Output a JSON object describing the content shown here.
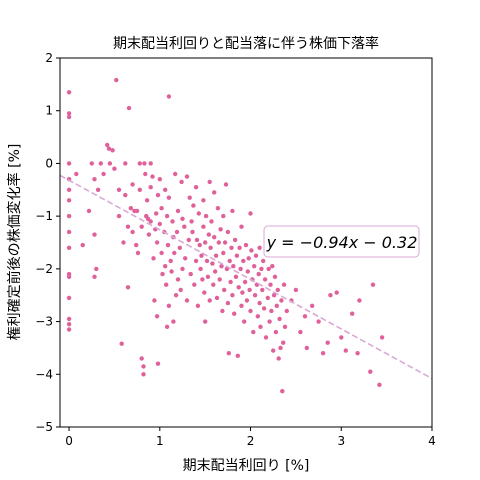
{
  "chart_data": {
    "type": "scatter",
    "title": "期末配当利回りと配当落に伴う株価下落率",
    "xlabel": "期末配当利回り [%]",
    "ylabel": "権利確定前後の株価変化率 [%]",
    "xlim": [
      -0.1,
      4
    ],
    "ylim": [
      -5,
      2
    ],
    "xticks": [
      0,
      1,
      2,
      3,
      4
    ],
    "yticks": [
      -5,
      -4,
      -3,
      -2,
      -1,
      0,
      1,
      2
    ],
    "grid": false,
    "annotation": "y = −0.94x − 0.32",
    "regression": {
      "slope": -0.94,
      "intercept": -0.32
    },
    "point_color": "#e0609a",
    "line_color": "#d9a9d6",
    "points": [
      [
        0,
        1.35
      ],
      [
        0,
        0.95
      ],
      [
        0,
        0.88
      ],
      [
        0,
        0
      ],
      [
        0,
        -0.3
      ],
      [
        0,
        -0.5
      ],
      [
        0,
        -0.7
      ],
      [
        0,
        -1.0
      ],
      [
        0,
        -1.3
      ],
      [
        0,
        -1.6
      ],
      [
        0,
        -2.1
      ],
      [
        0,
        -2.15
      ],
      [
        0,
        -2.55
      ],
      [
        0,
        -2.95
      ],
      [
        0,
        -3.05
      ],
      [
        0,
        -3.15
      ],
      [
        0.08,
        -0.2
      ],
      [
        0.15,
        -1.55
      ],
      [
        0.22,
        -0.9
      ],
      [
        0.25,
        0
      ],
      [
        0.28,
        -0.3
      ],
      [
        0.28,
        -1.35
      ],
      [
        0.28,
        -2.15
      ],
      [
        0.3,
        -2.0
      ],
      [
        0.32,
        -0.5
      ],
      [
        0.35,
        0
      ],
      [
        0.38,
        -0.2
      ],
      [
        0.42,
        0.35
      ],
      [
        0.44,
        0.28
      ],
      [
        0.45,
        0
      ],
      [
        0.48,
        0.25
      ],
      [
        0.5,
        -0.1
      ],
      [
        0.52,
        1.58
      ],
      [
        0.55,
        -0.5
      ],
      [
        0.55,
        -1.0
      ],
      [
        0.58,
        -3.42
      ],
      [
        0.6,
        -1.5
      ],
      [
        0.62,
        0
      ],
      [
        0.62,
        -0.6
      ],
      [
        0.65,
        -1.2
      ],
      [
        0.65,
        -2.35
      ],
      [
        0.66,
        1.05
      ],
      [
        0.68,
        -0.85
      ],
      [
        0.7,
        -1.3
      ],
      [
        0.7,
        -0.4
      ],
      [
        0.72,
        -0.9
      ],
      [
        0.74,
        -1.55
      ],
      [
        0.75,
        -0.9
      ],
      [
        0.76,
        -1.7
      ],
      [
        0.78,
        0
      ],
      [
        0.78,
        -0.5
      ],
      [
        0.8,
        -1.2
      ],
      [
        0.8,
        -3.7
      ],
      [
        0.82,
        -3.85
      ],
      [
        0.82,
        -4.0
      ],
      [
        0.83,
        0
      ],
      [
        0.84,
        -0.2
      ],
      [
        0.85,
        -1.0
      ],
      [
        0.86,
        -0.7
      ],
      [
        0.87,
        -1.05
      ],
      [
        0.88,
        -1.35
      ],
      [
        0.9,
        0
      ],
      [
        0.9,
        -1.1
      ],
      [
        0.9,
        -0.45
      ],
      [
        0.92,
        -0.25
      ],
      [
        0.93,
        -1.8
      ],
      [
        0.94,
        -2.6
      ],
      [
        0.95,
        -1.25
      ],
      [
        0.96,
        -0.95
      ],
      [
        0.97,
        -1.5
      ],
      [
        0.97,
        -2.9
      ],
      [
        0.98,
        -0.6
      ],
      [
        0.98,
        -3.8
      ],
      [
        1.0,
        -0.3
      ],
      [
        1.0,
        -1.15
      ],
      [
        1.02,
        -0.85
      ],
      [
        1.02,
        -1.7
      ],
      [
        1.03,
        -2.1
      ],
      [
        1.05,
        -1.3
      ],
      [
        1.06,
        -0.5
      ],
      [
        1.06,
        -1.95
      ],
      [
        1.07,
        -2.3
      ],
      [
        1.08,
        -1.0
      ],
      [
        1.08,
        -3.1
      ],
      [
        1.09,
        -1.55
      ],
      [
        1.1,
        1.27
      ],
      [
        1.1,
        -0.65
      ],
      [
        1.1,
        -2.7
      ],
      [
        1.12,
        -1.85
      ],
      [
        1.13,
        -2.05
      ],
      [
        1.14,
        -1.1
      ],
      [
        1.15,
        -1.4
      ],
      [
        1.15,
        -3.0
      ],
      [
        1.16,
        -1.7
      ],
      [
        1.17,
        -0.2
      ],
      [
        1.18,
        -2.5
      ],
      [
        1.19,
        -1.3
      ],
      [
        1.2,
        -0.9
      ],
      [
        1.2,
        -2.2
      ],
      [
        1.22,
        -1.6
      ],
      [
        1.23,
        -2.4
      ],
      [
        1.24,
        -0.35
      ],
      [
        1.25,
        -1.05
      ],
      [
        1.25,
        -2.0
      ],
      [
        1.27,
        -1.2
      ],
      [
        1.28,
        -1.8
      ],
      [
        1.3,
        -0.25
      ],
      [
        1.3,
        -2.6
      ],
      [
        1.32,
        -1.45
      ],
      [
        1.33,
        -0.65
      ],
      [
        1.34,
        -2.1
      ],
      [
        1.35,
        -1.1
      ],
      [
        1.36,
        -1.3
      ],
      [
        1.37,
        -0.8
      ],
      [
        1.38,
        -2.3
      ],
      [
        1.4,
        -0.45
      ],
      [
        1.4,
        -1.85
      ],
      [
        1.41,
        -1.45
      ],
      [
        1.42,
        -2.7
      ],
      [
        1.43,
        -0.95
      ],
      [
        1.44,
        -1.55
      ],
      [
        1.45,
        -2.0
      ],
      [
        1.46,
        -1.75
      ],
      [
        1.47,
        -2.2
      ],
      [
        1.48,
        -0.7
      ],
      [
        1.48,
        -1.2
      ],
      [
        1.49,
        -2.45
      ],
      [
        1.5,
        -1.5
      ],
      [
        1.5,
        -3.0
      ],
      [
        1.51,
        -1.0
      ],
      [
        1.52,
        -1.85
      ],
      [
        1.53,
        -2.15
      ],
      [
        1.54,
        -1.35
      ],
      [
        1.55,
        -0.35
      ],
      [
        1.55,
        -2.6
      ],
      [
        1.56,
        -1.6
      ],
      [
        1.57,
        -1.1
      ],
      [
        1.58,
        -1.9
      ],
      [
        1.59,
        -2.3
      ],
      [
        1.6,
        -0.55
      ],
      [
        1.6,
        -1.4
      ],
      [
        1.61,
        -2.05
      ],
      [
        1.62,
        -1.75
      ],
      [
        1.63,
        -2.55
      ],
      [
        1.64,
        -0.85
      ],
      [
        1.65,
        -1.5
      ],
      [
        1.66,
        -2.2
      ],
      [
        1.67,
        -1.25
      ],
      [
        1.68,
        -1.95
      ],
      [
        1.69,
        -2.8
      ],
      [
        1.7,
        -1.0
      ],
      [
        1.7,
        -1.7
      ],
      [
        1.71,
        -2.4
      ],
      [
        1.72,
        -1.5
      ],
      [
        1.73,
        -0.4
      ],
      [
        1.74,
        -2.0
      ],
      [
        1.75,
        -1.3
      ],
      [
        1.75,
        -2.65
      ],
      [
        1.76,
        -3.6
      ],
      [
        1.77,
        -1.85
      ],
      [
        1.78,
        -2.25
      ],
      [
        1.79,
        -1.6
      ],
      [
        1.8,
        -0.9
      ],
      [
        1.8,
        -2.5
      ],
      [
        1.81,
        -1.95
      ],
      [
        1.82,
        -2.85
      ],
      [
        1.83,
        -1.45
      ],
      [
        1.84,
        -2.15
      ],
      [
        1.85,
        -1.75
      ],
      [
        1.86,
        -3.65
      ],
      [
        1.87,
        -2.35
      ],
      [
        1.88,
        -1.6
      ],
      [
        1.89,
        -2.0
      ],
      [
        1.9,
        -1.2
      ],
      [
        1.9,
        -2.7
      ],
      [
        1.91,
        -2.45
      ],
      [
        1.92,
        -1.85
      ],
      [
        1.93,
        -3.0
      ],
      [
        1.94,
        -2.25
      ],
      [
        1.95,
        -1.55
      ],
      [
        1.96,
        -2.6
      ],
      [
        1.97,
        -2.05
      ],
      [
        1.98,
        -1.8
      ],
      [
        1.99,
        -2.4
      ],
      [
        2.0,
        -0.95
      ],
      [
        2.0,
        -2.8
      ],
      [
        2.01,
        -1.65
      ],
      [
        2.02,
        -2.2
      ],
      [
        2.03,
        -3.2
      ],
      [
        2.04,
        -1.95
      ],
      [
        2.05,
        -2.5
      ],
      [
        2.06,
        -1.75
      ],
      [
        2.07,
        -2.3
      ],
      [
        2.08,
        -2.9
      ],
      [
        2.09,
        -2.1
      ],
      [
        2.1,
        -1.6
      ],
      [
        2.1,
        -2.65
      ],
      [
        2.11,
        -3.1
      ],
      [
        2.12,
        -2.0
      ],
      [
        2.13,
        -2.4
      ],
      [
        2.14,
        -1.85
      ],
      [
        2.15,
        -2.75
      ],
      [
        2.16,
        -2.2
      ],
      [
        2.17,
        -3.3
      ],
      [
        2.18,
        -1.5
      ],
      [
        2.19,
        -2.55
      ],
      [
        2.2,
        -2.0
      ],
      [
        2.21,
        -3.0
      ],
      [
        2.22,
        -2.3
      ],
      [
        2.23,
        -2.8
      ],
      [
        2.24,
        -1.95
      ],
      [
        2.25,
        -3.55
      ],
      [
        2.26,
        -2.5
      ],
      [
        2.27,
        -2.15
      ],
      [
        2.28,
        -3.2
      ],
      [
        2.29,
        -2.7
      ],
      [
        2.3,
        -2.4
      ],
      [
        2.31,
        -3.7
      ],
      [
        2.32,
        -2.95
      ],
      [
        2.33,
        -3.5
      ],
      [
        2.34,
        -2.6
      ],
      [
        2.35,
        -4.32
      ],
      [
        2.36,
        -3.4
      ],
      [
        2.37,
        -2.3
      ],
      [
        2.38,
        -3.1
      ],
      [
        2.4,
        -2.8
      ],
      [
        2.45,
        -2.6
      ],
      [
        2.5,
        -2.4
      ],
      [
        2.55,
        -3.2
      ],
      [
        2.6,
        -2.9
      ],
      [
        2.62,
        -3.5
      ],
      [
        2.68,
        -2.7
      ],
      [
        2.75,
        -3.0
      ],
      [
        2.8,
        -3.6
      ],
      [
        2.85,
        -3.4
      ],
      [
        2.88,
        -2.5
      ],
      [
        2.95,
        -2.45
      ],
      [
        3.0,
        -3.3
      ],
      [
        3.05,
        -3.55
      ],
      [
        3.12,
        -2.85
      ],
      [
        3.18,
        -3.6
      ],
      [
        3.2,
        -2.6
      ],
      [
        3.32,
        -3.95
      ],
      [
        3.35,
        -2.3
      ],
      [
        3.42,
        -4.2
      ],
      [
        3.45,
        -3.3
      ]
    ]
  }
}
